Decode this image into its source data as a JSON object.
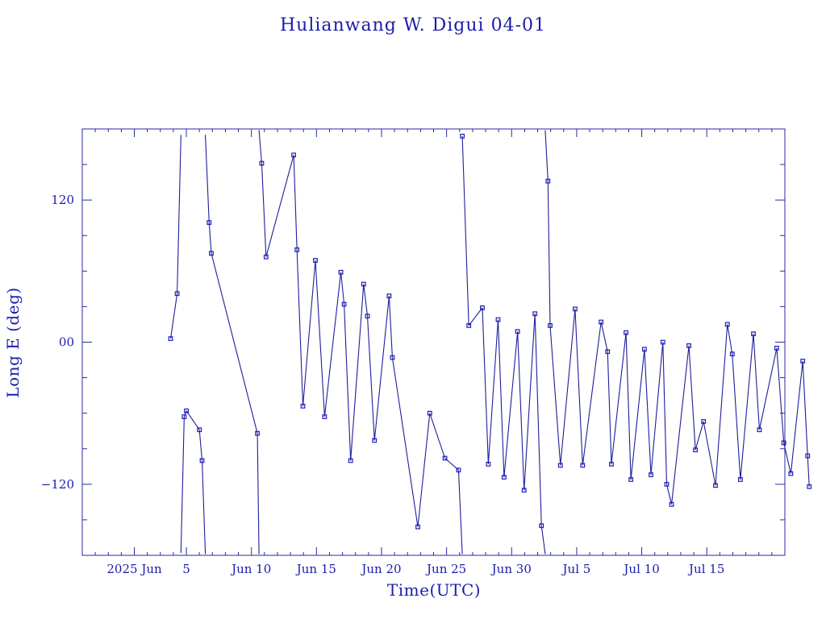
{
  "chart_data": {
    "type": "line",
    "title": "Hulianwang W. Digui 04-01",
    "xlabel": "Time(UTC)",
    "ylabel": "Long E (deg)",
    "x_axis": {
      "unit": "date",
      "start": "2025-05-28T00:00:00",
      "end": "2025-07-21T00:00:00",
      "tick_labels": [
        {
          "date": "2025-06-01",
          "label": "2025 Jun"
        },
        {
          "date": "2025-06-05",
          "label": "5"
        },
        {
          "date": "2025-06-10",
          "label": "Jun 10"
        },
        {
          "date": "2025-06-15",
          "label": "Jun 15"
        },
        {
          "date": "2025-06-20",
          "label": "Jun 20"
        },
        {
          "date": "2025-06-25",
          "label": "Jun 25"
        },
        {
          "date": "2025-06-30",
          "label": "Jun 30"
        },
        {
          "date": "2025-07-05",
          "label": "Jul 5"
        },
        {
          "date": "2025-07-10",
          "label": "Jul 10"
        },
        {
          "date": "2025-07-15",
          "label": "Jul 15"
        }
      ]
    },
    "y_axis": {
      "range": [
        -180,
        180
      ],
      "tick_values": [
        120,
        0,
        -120
      ],
      "tick_labels": [
        "120",
        "00",
        "−120"
      ]
    },
    "grid": false,
    "colors": {
      "line": "#1e1e9c",
      "marker": "#1e1eb4",
      "text": "#1c1caa",
      "axis": "#2a2aa0"
    },
    "series": [
      {
        "marker": "square",
        "points": [
          [
            "2025-06-03T19:00:00",
            3
          ],
          [
            "2025-06-04T07:00:00",
            41
          ],
          [
            "2025-06-04T14:00:00",
            175
          ],
          [
            "2025-06-04T14:00:00",
            -178
          ],
          [
            "2025-06-04T20:00:00",
            -63
          ],
          [
            "2025-06-05T00:00:00",
            -58
          ],
          [
            "2025-06-06T00:00:00",
            -74
          ],
          [
            "2025-06-06T05:00:00",
            -100
          ],
          [
            "2025-06-06T11:00:00",
            -179
          ],
          [
            "2025-06-06T11:00:00",
            175
          ],
          [
            "2025-06-06T18:00:00",
            101
          ],
          [
            "2025-06-06T22:00:00",
            75
          ],
          [
            "2025-06-10T11:00:00",
            -77
          ],
          [
            "2025-06-10T14:00:00",
            -179
          ],
          [
            "2025-06-10T14:00:00",
            179
          ],
          [
            "2025-06-10T19:00:00",
            151
          ],
          [
            "2025-06-11T03:00:00",
            72
          ],
          [
            "2025-06-13T06:00:00",
            158
          ],
          [
            "2025-06-13T12:00:00",
            78
          ],
          [
            "2025-06-13T23:00:00",
            -54
          ],
          [
            "2025-06-14T22:00:00",
            69
          ],
          [
            "2025-06-15T15:00:00",
            -63
          ],
          [
            "2025-06-16T21:00:00",
            59
          ],
          [
            "2025-06-17T03:00:00",
            32
          ],
          [
            "2025-06-17T15:00:00",
            -100
          ],
          [
            "2025-06-18T15:00:00",
            49
          ],
          [
            "2025-06-18T22:00:00",
            22
          ],
          [
            "2025-06-19T11:00:00",
            -83
          ],
          [
            "2025-06-20T14:00:00",
            39
          ],
          [
            "2025-06-20T20:00:00",
            -13
          ],
          [
            "2025-06-22T19:00:00",
            -156
          ],
          [
            "2025-06-23T17:00:00",
            -60
          ],
          [
            "2025-06-24T21:00:00",
            -98
          ],
          [
            "2025-06-25T22:00:00",
            -108
          ],
          [
            "2025-06-26T05:00:00",
            -179
          ],
          [
            "2025-06-26T05:00:00",
            174
          ],
          [
            "2025-06-26T17:00:00",
            14
          ],
          [
            "2025-06-27T18:00:00",
            29
          ],
          [
            "2025-06-28T05:00:00",
            -103
          ],
          [
            "2025-06-28T23:00:00",
            19
          ],
          [
            "2025-06-29T10:00:00",
            -114
          ],
          [
            "2025-06-30T11:00:00",
            9
          ],
          [
            "2025-06-30T23:00:00",
            -125
          ],
          [
            "2025-07-01T19:00:00",
            24
          ],
          [
            "2025-07-02T07:00:00",
            -155
          ],
          [
            "2025-07-02T14:00:00",
            -179
          ],
          [
            "2025-07-02T14:00:00",
            179
          ],
          [
            "2025-07-02T19:00:00",
            136
          ],
          [
            "2025-07-02T23:00:00",
            14
          ],
          [
            "2025-07-03T18:00:00",
            -104
          ],
          [
            "2025-07-04T21:00:00",
            28
          ],
          [
            "2025-07-05T11:00:00",
            -104
          ],
          [
            "2025-07-06T21:00:00",
            17
          ],
          [
            "2025-07-07T09:00:00",
            -8
          ],
          [
            "2025-07-07T16:00:00",
            -103
          ],
          [
            "2025-07-08T19:00:00",
            8
          ],
          [
            "2025-07-09T04:00:00",
            -116
          ],
          [
            "2025-07-10T05:00:00",
            -6
          ],
          [
            "2025-07-10T17:00:00",
            -112
          ],
          [
            "2025-07-11T15:00:00",
            0
          ],
          [
            "2025-07-11T22:00:00",
            -120
          ],
          [
            "2025-07-12T07:00:00",
            -137
          ],
          [
            "2025-07-13T15:00:00",
            -3
          ],
          [
            "2025-07-14T03:00:00",
            -91
          ],
          [
            "2025-07-14T18:00:00",
            -67
          ],
          [
            "2025-07-15T16:00:00",
            -121
          ],
          [
            "2025-07-16T14:00:00",
            15
          ],
          [
            "2025-07-16T23:00:00",
            -10
          ],
          [
            "2025-07-17T14:00:00",
            -116
          ],
          [
            "2025-07-18T14:00:00",
            7
          ],
          [
            "2025-07-19T01:00:00",
            -74
          ],
          [
            "2025-07-20T09:00:00",
            -5
          ],
          [
            "2025-07-20T22:00:00",
            -85
          ],
          [
            "2025-07-21T11:00:00",
            -111
          ],
          [
            "2025-07-22T09:00:00",
            -16
          ],
          [
            "2025-07-22T18:00:00",
            -96
          ],
          [
            "2025-07-22T21:00:00",
            -122
          ]
        ]
      }
    ]
  }
}
